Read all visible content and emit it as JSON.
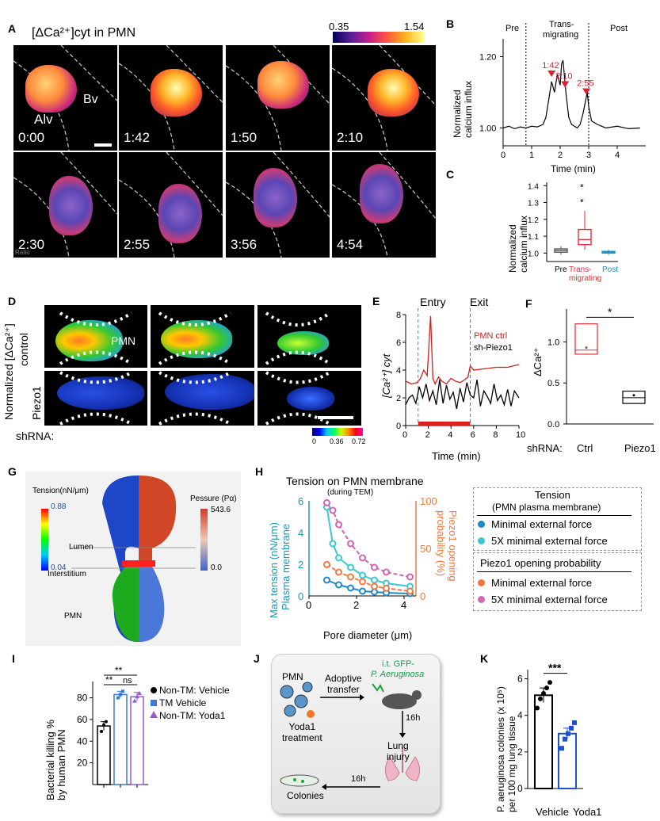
{
  "panel_labels": [
    "A",
    "B",
    "C",
    "D",
    "E",
    "F",
    "G",
    "H",
    "I",
    "J",
    "K"
  ],
  "A": {
    "title": "[ΔCa²⁺]cyt in PMN",
    "colorbar_min": "0.35",
    "colorbar_max": "1.54",
    "region_alv": "Alv",
    "region_bv": "Bv",
    "times": [
      "0:00",
      "1:42",
      "1:50",
      "2:10",
      "2:30",
      "2:55",
      "3:56",
      "4:54"
    ],
    "ratio_label": "Ratio"
  },
  "B": {
    "phase_pre": "Pre",
    "phase_trans": "Trans-\nmigrating",
    "phase_post": "Post",
    "ylabel": "Normalized\ncalcium influx",
    "xlabel": "Time (min)",
    "peaks": [
      "1:42",
      "2:10",
      "2:55"
    ]
  },
  "C": {
    "ylabel": "Normalized\ncalcium influx",
    "categories": [
      "Pre",
      "Trans-\nmigrating",
      "Post"
    ],
    "star": "*"
  },
  "D": {
    "ylabel": "Normalized [ΔCa²⁺]",
    "row_control": "control",
    "row_piezo": "Piezo1",
    "pmn": "PMN",
    "shrna": "shRNA:",
    "scale": [
      "0",
      "0.36",
      "0.72"
    ]
  },
  "E": {
    "entry": "Entry",
    "exit": "Exit",
    "legend_ctrl": "PMN ctrl",
    "legend_sh": "sh-Piezo1",
    "ylabel": "[Ca²⁺] cyt",
    "xlabel": "Time (min)"
  },
  "F": {
    "ylabel": "ΔCa²⁺",
    "shrna": "shRNA:",
    "categories": [
      "Ctrl",
      "Piezo1"
    ],
    "star": "*"
  },
  "G": {
    "tension_label": "Tension(nN/μm)",
    "tension_max": "0.88",
    "tension_min": "0.04",
    "pressure_label": "Pessure (Pα)",
    "pressure_max": "543.6",
    "pressure_min": "0.0",
    "lumen": "Lumen",
    "interstitium": "Interstitium",
    "pmn": "PMN"
  },
  "H": {
    "title": "Tension on PMN membrane",
    "subtitle": "(during TEM)",
    "ylabel_left": "Max tension (nN/μm)\nPlasma membrane",
    "ylabel_right": "Piezo1 opening\nprobability (%)",
    "xlabel": "Pore diameter (μm)",
    "legend_tension_title": "Tension",
    "legend_tension_sub": "(PMN plasma membrane)",
    "legend_piezo_title": "Piezo1 opening probability",
    "legend_min": "Minimal external force",
    "legend_5x": "5X minimal external force"
  },
  "I": {
    "ylabel": "Bacterial killing %\nby human PMN",
    "sig1": "**",
    "sig2": "**",
    "sig3": "ns",
    "legend": [
      "Non-TM: Vehicle",
      "TM Vehicle",
      "Non-TM: Yoda1"
    ]
  },
  "J": {
    "pmn": "PMN",
    "treatment": "Yoda1\ntreatment",
    "transfer": "Adoptive\ntransfer",
    "itgfp": "i.t. GFP-",
    "pa": "P. Aeruginosa",
    "h16a": "16h",
    "injury": "Lung\ninjury",
    "h16b": "16h",
    "colonies": "Colonies"
  },
  "K": {
    "ylabel": "P. aeruginosa colonies (x 10⁵)\nper 100 mg lung tissue",
    "categories": [
      "Vehicle",
      "Yoda1"
    ],
    "sig": "***"
  },
  "chart_data": [
    {
      "type": "line",
      "panel": "B",
      "title": "",
      "xlabel": "Time (min)",
      "ylabel": "Normalized calcium influx",
      "xlim": [
        0,
        5
      ],
      "ylim": [
        0.95,
        1.25
      ],
      "xticks": [
        0,
        1,
        2,
        3,
        4
      ],
      "yticks": [
        1.0,
        1.2
      ],
      "ytick_labels": [
        "1.00",
        "1.20"
      ],
      "phase_boundaries": [
        0.8,
        3.0
      ],
      "x": [
        0,
        0.2,
        0.4,
        0.6,
        0.8,
        1.0,
        1.2,
        1.4,
        1.5,
        1.6,
        1.7,
        1.8,
        1.9,
        2.0,
        2.05,
        2.1,
        2.2,
        2.3,
        2.4,
        2.5,
        2.6,
        2.7,
        2.8,
        2.9,
        2.95,
        3.0,
        3.1,
        3.3,
        3.6,
        4.0,
        4.4,
        4.8
      ],
      "y": [
        1.0,
        1.005,
        0.998,
        1.003,
        1.0,
        1.005,
        1.003,
        1.01,
        1.03,
        1.08,
        1.13,
        1.1,
        1.15,
        1.12,
        1.18,
        1.19,
        1.1,
        1.03,
        1.01,
        1.005,
        1.0,
        1.01,
        1.04,
        1.08,
        1.1,
        1.06,
        1.02,
        1.01,
        1.0,
        1.005,
        0.998,
        1.0
      ],
      "annotations": [
        {
          "x": 1.7,
          "label": "1:42"
        },
        {
          "x": 2.17,
          "label": "2:10"
        },
        {
          "x": 2.92,
          "label": "2:55"
        }
      ]
    },
    {
      "type": "box",
      "panel": "C",
      "categories": [
        "Pre",
        "Trans-migrating",
        "Post"
      ],
      "ylim": [
        0.95,
        1.42
      ],
      "yticks": [
        1.0,
        1.1,
        1.2,
        1.3,
        1.4
      ],
      "boxes": [
        {
          "min": 0.99,
          "q1": 1.005,
          "median": 1.015,
          "q3": 1.025,
          "max": 1.04,
          "color": "#555555"
        },
        {
          "min": 1.02,
          "q1": 1.05,
          "median": 1.08,
          "q3": 1.14,
          "max": 1.25,
          "color": "#e0303a"
        },
        {
          "min": 0.99,
          "q1": 1.0,
          "median": 1.005,
          "q3": 1.01,
          "max": 1.02,
          "color": "#1e90c8"
        }
      ]
    },
    {
      "type": "line",
      "panel": "E",
      "xlabel": "Time (min)",
      "ylabel": "[Ca2+] cyt",
      "xlim": [
        0,
        10
      ],
      "ylim": [
        0,
        8
      ],
      "xticks": [
        0,
        2,
        4,
        6,
        8,
        10
      ],
      "yticks": [
        0,
        2,
        4,
        6,
        8
      ],
      "entry_x": 1.1,
      "exit_x": 5.7,
      "series": [
        {
          "name": "PMN ctrl",
          "color": "#d21e1e",
          "x": [
            0,
            0.5,
            1.0,
            1.3,
            1.6,
            1.9,
            2.2,
            2.4,
            2.6,
            2.9,
            3.2,
            3.6,
            4.0,
            4.4,
            4.8,
            5.2,
            5.5,
            5.7,
            6.0,
            7.0,
            8.0,
            9.0,
            10.0
          ],
          "y": [
            3.2,
            3.0,
            3.1,
            3.4,
            4.0,
            3.6,
            7.9,
            3.4,
            3.0,
            3.5,
            3.2,
            3.0,
            3.4,
            3.2,
            3.1,
            3.3,
            3.5,
            4.3,
            4.0,
            4.1,
            4.2,
            4.2,
            4.4
          ]
        },
        {
          "name": "sh-Piezo1",
          "color": "#000000",
          "x": [
            0,
            0.3,
            0.6,
            0.9,
            1.2,
            1.5,
            1.8,
            2.1,
            2.4,
            2.7,
            3.0,
            3.3,
            3.6,
            3.9,
            4.2,
            4.5,
            4.8,
            5.1,
            5.4,
            5.7,
            6.0,
            6.3,
            6.6,
            6.9,
            7.2,
            7.5,
            7.8,
            8.1,
            8.4,
            8.7,
            9.0,
            9.3,
            9.6,
            10.0
          ],
          "y": [
            1.5,
            2.0,
            2.2,
            1.6,
            2.8,
            2.0,
            3.0,
            1.8,
            2.5,
            1.5,
            3.3,
            1.6,
            2.9,
            1.9,
            2.4,
            1.2,
            2.7,
            1.7,
            3.1,
            2.2,
            2.0,
            3.3,
            1.4,
            2.5,
            2.1,
            1.6,
            3.0,
            1.8,
            2.2,
            1.5,
            2.6,
            1.4,
            2.5,
            2.0
          ]
        }
      ]
    },
    {
      "type": "box",
      "panel": "F",
      "categories": [
        "Ctrl",
        "Piezo1"
      ],
      "ylim": [
        0,
        1.4
      ],
      "yticks": [
        0,
        0.5,
        1.0
      ],
      "boxes": [
        {
          "min": 0.85,
          "q1": 0.85,
          "median": 0.9,
          "q3": 1.22,
          "max": 1.22,
          "color": "#e0303a"
        },
        {
          "min": 0.25,
          "q1": 0.25,
          "median": 0.32,
          "q3": 0.4,
          "max": 0.4,
          "color": "#000000"
        }
      ]
    },
    {
      "type": "line",
      "panel": "H",
      "xlabel": "Pore diameter (μm)",
      "xlim": [
        0,
        4.5
      ],
      "ylim_left": [
        0,
        6
      ],
      "ylim_right": [
        0,
        100
      ],
      "xticks": [
        0,
        2,
        4
      ],
      "yticks_left": [
        0,
        2,
        4,
        6
      ],
      "yticks_right": [
        0,
        50,
        100
      ],
      "series": [
        {
          "name": "Tension minimal",
          "axis": "left",
          "color": "#1e88c8",
          "x": [
            0.75,
            1.25,
            1.75,
            2.25,
            2.75,
            3.25,
            4.25
          ],
          "y": [
            1.0,
            0.7,
            0.5,
            0.3,
            0.25,
            0.2,
            0.15
          ]
        },
        {
          "name": "Tension 5X",
          "axis": "left",
          "color": "#3cc8d2",
          "x": [
            0.75,
            1.0,
            1.25,
            1.75,
            2.25,
            2.75,
            3.25,
            4.25
          ],
          "y": [
            5.6,
            3.3,
            2.4,
            1.8,
            1.3,
            1.0,
            0.8,
            0.6
          ]
        },
        {
          "name": "Piezo1 minimal",
          "axis": "right",
          "color": "#f07840",
          "x": [
            0.75,
            1.25,
            1.75,
            2.25,
            2.75,
            3.25,
            4.25
          ],
          "y": [
            33,
            25,
            20,
            15,
            10,
            8,
            5
          ]
        },
        {
          "name": "Piezo1 5X",
          "axis": "right",
          "color": "#d264b4",
          "x": [
            0.75,
            1.0,
            1.25,
            1.75,
            2.25,
            2.75,
            3.25,
            4.25
          ],
          "y": [
            98,
            90,
            75,
            55,
            40,
            30,
            25,
            20
          ]
        }
      ]
    },
    {
      "type": "bar",
      "panel": "I",
      "categories": [
        "Non-TM: Vehicle",
        "TM Vehicle",
        "Non-TM: Yoda1"
      ],
      "values": [
        54,
        83,
        81
      ],
      "errors": [
        4,
        3,
        4
      ],
      "points": [
        [
          49,
          55,
          58
        ],
        [
          80,
          83,
          86
        ],
        [
          77,
          81,
          84
        ]
      ],
      "colors": [
        "#000000",
        "#3c78d8",
        "#9b59d0"
      ],
      "ylim": [
        0,
        95
      ],
      "yticks": [
        20,
        40,
        60,
        80
      ]
    },
    {
      "type": "bar",
      "panel": "K",
      "categories": [
        "Vehicle",
        "Yoda1"
      ],
      "values": [
        5.1,
        3.0
      ],
      "errors": [
        0.4,
        0.3
      ],
      "points": [
        [
          4.4,
          4.9,
          5.2,
          5.5,
          5.8
        ],
        [
          2.2,
          2.7,
          3.0,
          3.3,
          3.6
        ]
      ],
      "colors": [
        "#000000",
        "#1e50d2"
      ],
      "ylim": [
        0,
        6.5
      ],
      "yticks": [
        0,
        2,
        4,
        6
      ]
    }
  ]
}
